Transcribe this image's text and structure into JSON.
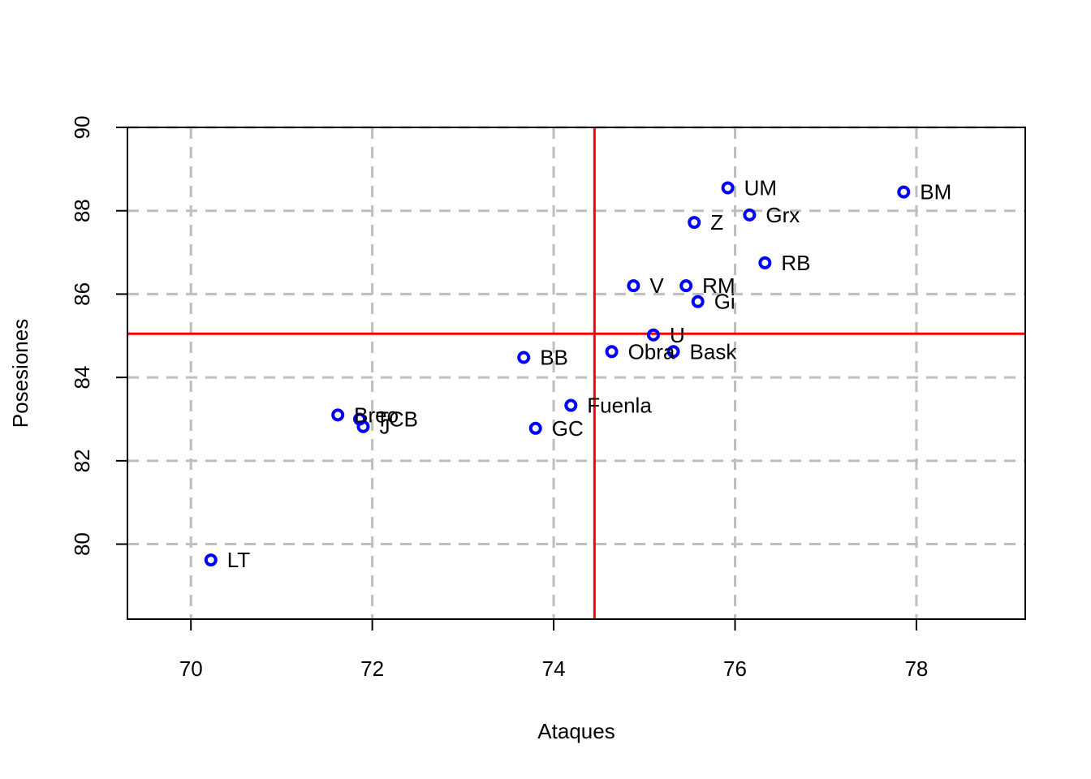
{
  "chart_data": {
    "type": "scatter",
    "xlabel": "Ataques",
    "ylabel": "Posesiones",
    "xlim": [
      69.3,
      79.2
    ],
    "ylim": [
      78.2,
      90
    ],
    "x_ticks": [
      70,
      72,
      74,
      76,
      78
    ],
    "y_ticks": [
      80,
      82,
      84,
      86,
      88,
      90
    ],
    "grid": true,
    "reference_lines": {
      "x": 74.45,
      "y": 85.05,
      "color": "#ff0000"
    },
    "point_color": "#0000ff",
    "grid_color": "#bebebe",
    "points": [
      {
        "label": "UM",
        "x": 75.92,
        "y": 88.55
      },
      {
        "label": "BM",
        "x": 77.86,
        "y": 88.45
      },
      {
        "label": "Grx",
        "x": 76.16,
        "y": 87.9
      },
      {
        "label": "Z",
        "x": 75.55,
        "y": 87.72
      },
      {
        "label": "RB",
        "x": 76.33,
        "y": 86.75
      },
      {
        "label": "V",
        "x": 74.88,
        "y": 86.2
      },
      {
        "label": "RM",
        "x": 75.46,
        "y": 86.2
      },
      {
        "label": "Gi",
        "x": 75.59,
        "y": 85.82
      },
      {
        "label": "U",
        "x": 75.1,
        "y": 85.02
      },
      {
        "label": "Obra",
        "x": 74.64,
        "y": 84.62
      },
      {
        "label": "Bask",
        "x": 75.32,
        "y": 84.62
      },
      {
        "label": "BB",
        "x": 73.67,
        "y": 84.48
      },
      {
        "label": "Fuenla",
        "x": 74.19,
        "y": 83.33
      },
      {
        "label": "Breo",
        "x": 71.62,
        "y": 83.1
      },
      {
        "label": "TCB",
        "x": 71.86,
        "y": 83.0
      },
      {
        "label": "J",
        "x": 71.9,
        "y": 82.82
      },
      {
        "label": "GC",
        "x": 73.8,
        "y": 82.78
      },
      {
        "label": "LT",
        "x": 70.22,
        "y": 79.62
      }
    ]
  }
}
